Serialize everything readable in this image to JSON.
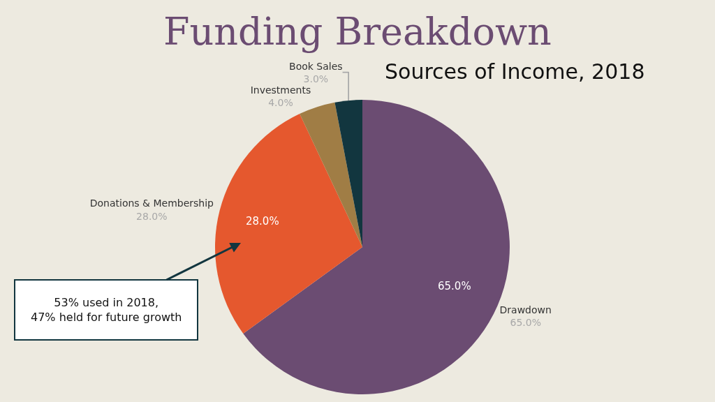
{
  "chart_data": {
    "type": "pie",
    "title": "Funding Breakdown",
    "subtitle": "Sources of Income, 2018",
    "categories": [
      "Drawdown",
      "Donations & Membership",
      "Investments",
      "Book Sales"
    ],
    "values": [
      65,
      28,
      4,
      3
    ],
    "colors": [
      "#6b4c72",
      "#e5582e",
      "#a07d45",
      "#12363f"
    ],
    "value_labels": [
      "65.0%",
      "28.0%",
      "4.0%",
      "3.0%"
    ],
    "annotations": [
      "53% used in 2018,\n47% held for future growth"
    ],
    "legend": false
  }
}
